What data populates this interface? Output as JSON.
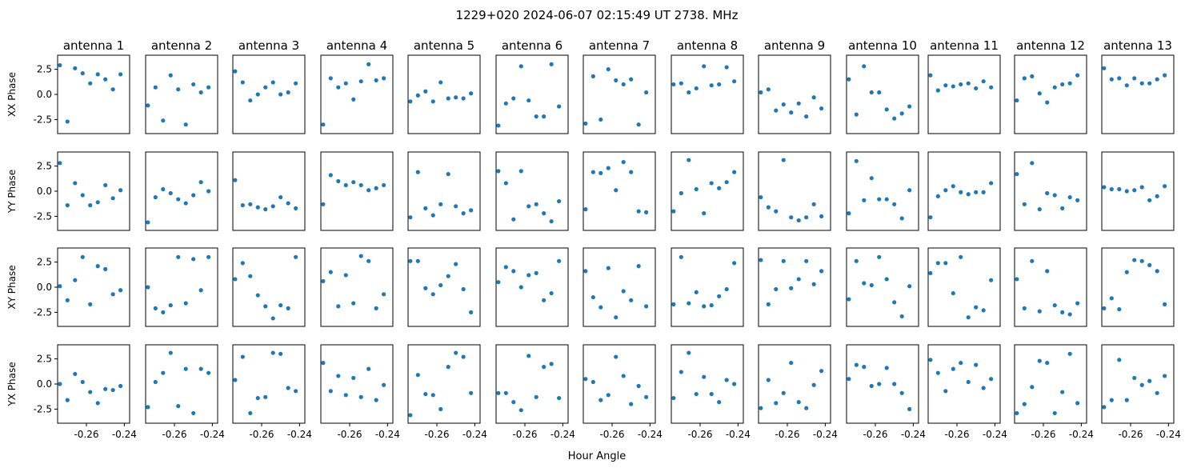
{
  "title": "1229+020  2024-06-07 02:15:49 UT  2738. MHz",
  "xlabel": "Hour Angle",
  "row_labels": [
    "XX Phase",
    "YY Phase",
    "XY Phase",
    "YX Phase"
  ],
  "antenna_labels": [
    "antenna 1",
    "antenna 2",
    "antenna 3",
    "antenna 4",
    "antenna 5",
    "antenna 6",
    "antenna 7",
    "antenna 8",
    "antenna 9",
    "antenna 10",
    "antenna 11",
    "antenna 12",
    "antenna 13"
  ],
  "y_ticks": [
    "2.5",
    "0.0",
    "-2.5"
  ],
  "x_ticks": [
    "-0.26",
    "-0.24"
  ],
  "colors": {
    "marker": "#1f77b4"
  },
  "chart_data": {
    "type": "scatter",
    "grid": false,
    "xlim": [
      -0.2752,
      -0.2372
    ],
    "ylim": [
      -3.9,
      3.9
    ],
    "x": [
      -0.274,
      -0.27,
      -0.266,
      -0.262,
      -0.258,
      -0.254,
      -0.25,
      -0.246,
      -0.242,
      -0.238
    ],
    "series": [
      {
        "row": 0,
        "antenna": 1,
        "values": [
          2.9,
          -2.7,
          2.6,
          2.1,
          1.1,
          2.0,
          1.5,
          0.5,
          2.0,
          null
        ]
      },
      {
        "row": 0,
        "antenna": 2,
        "values": [
          -1.1,
          0.7,
          -2.6,
          1.9,
          0.5,
          -3.0,
          1.0,
          0.2,
          0.7,
          null
        ]
      },
      {
        "row": 0,
        "antenna": 3,
        "values": [
          2.3,
          1.2,
          -0.6,
          0.0,
          0.7,
          1.2,
          0.0,
          0.2,
          1.1,
          null
        ]
      },
      {
        "row": 0,
        "antenna": 4,
        "values": [
          -3.0,
          1.6,
          0.7,
          1.1,
          -0.5,
          1.3,
          3.0,
          1.4,
          1.6,
          null
        ]
      },
      {
        "row": 0,
        "antenna": 5,
        "values": [
          -0.7,
          -0.1,
          0.3,
          -0.7,
          1.2,
          -0.4,
          -0.3,
          -0.4,
          0.1,
          null
        ]
      },
      {
        "row": 0,
        "antenna": 6,
        "values": [
          -3.1,
          -0.9,
          -0.4,
          2.8,
          -0.6,
          -2.2,
          -2.2,
          3.0,
          -1.2,
          null
        ]
      },
      {
        "row": 0,
        "antenna": 7,
        "values": [
          -2.9,
          1.8,
          -2.5,
          2.5,
          1.4,
          1.0,
          1.5,
          -3.0,
          0.2,
          null
        ]
      },
      {
        "row": 0,
        "antenna": 8,
        "values": [
          1.0,
          1.1,
          0.2,
          0.6,
          2.8,
          0.9,
          1.0,
          2.7,
          1.3,
          null
        ]
      },
      {
        "row": 0,
        "antenna": 9,
        "values": [
          0.2,
          0.5,
          -1.6,
          -1.0,
          -1.8,
          -0.9,
          -2.2,
          -0.3,
          -1.4,
          null
        ]
      },
      {
        "row": 0,
        "antenna": 10,
        "values": [
          1.5,
          -2.0,
          2.8,
          0.2,
          0.2,
          -1.5,
          -2.4,
          -1.9,
          -1.2,
          null
        ]
      },
      {
        "row": 0,
        "antenna": 11,
        "values": [
          1.9,
          0.4,
          0.9,
          0.8,
          1.0,
          1.1,
          0.6,
          1.3,
          0.7,
          null
        ]
      },
      {
        "row": 0,
        "antenna": 12,
        "values": [
          -0.6,
          1.6,
          1.8,
          0.1,
          -0.8,
          0.7,
          1.0,
          1.1,
          1.9,
          null
        ]
      },
      {
        "row": 0,
        "antenna": 13,
        "values": [
          2.6,
          1.5,
          1.6,
          0.9,
          1.6,
          1.1,
          1.1,
          1.5,
          1.9,
          null
        ]
      },
      {
        "row": 1,
        "antenna": 1,
        "values": [
          2.8,
          -1.4,
          0.8,
          -0.4,
          -1.4,
          -1.1,
          0.6,
          -0.7,
          0.1,
          null
        ]
      },
      {
        "row": 1,
        "antenna": 2,
        "values": [
          -3.1,
          -0.6,
          0.2,
          -0.2,
          -0.8,
          -1.2,
          -0.4,
          0.9,
          0.0,
          null
        ]
      },
      {
        "row": 1,
        "antenna": 3,
        "values": [
          1.1,
          -1.4,
          -1.3,
          -1.6,
          -1.8,
          -1.5,
          -0.6,
          -1.2,
          -1.7,
          null
        ]
      },
      {
        "row": 1,
        "antenna": 4,
        "values": [
          -1.3,
          1.6,
          1.0,
          0.6,
          0.9,
          0.6,
          0.1,
          0.3,
          0.6,
          null
        ]
      },
      {
        "row": 1,
        "antenna": 5,
        "values": [
          -2.6,
          1.9,
          -1.7,
          -2.4,
          -1.3,
          1.7,
          -1.5,
          -2.2,
          -1.9,
          null
        ]
      },
      {
        "row": 1,
        "antenna": 6,
        "values": [
          2.0,
          0.8,
          -2.8,
          2.0,
          -1.5,
          -1.3,
          -2.2,
          -3.0,
          -1.0,
          null
        ]
      },
      {
        "row": 1,
        "antenna": 7,
        "values": [
          -1.8,
          1.9,
          1.8,
          2.3,
          0.1,
          2.9,
          1.9,
          -2.0,
          -2.1,
          null
        ]
      },
      {
        "row": 1,
        "antenna": 8,
        "values": [
          -2.0,
          -0.2,
          3.1,
          0.2,
          -2.2,
          0.8,
          0.3,
          0.9,
          1.9,
          null
        ]
      },
      {
        "row": 1,
        "antenna": 9,
        "values": [
          -0.6,
          -1.6,
          -2.0,
          3.1,
          -2.6,
          -2.9,
          -2.6,
          -1.3,
          -2.5,
          null
        ]
      },
      {
        "row": 1,
        "antenna": 10,
        "values": [
          -2.2,
          3.0,
          -0.9,
          1.3,
          -0.8,
          -0.8,
          -1.3,
          -2.7,
          0.1,
          null
        ]
      },
      {
        "row": 1,
        "antenna": 11,
        "values": [
          -2.6,
          -0.5,
          0.1,
          0.5,
          -0.1,
          -0.3,
          -0.1,
          -0.1,
          0.8,
          null
        ]
      },
      {
        "row": 1,
        "antenna": 12,
        "values": [
          1.7,
          -1.3,
          2.8,
          -1.8,
          -0.2,
          -0.4,
          -1.7,
          -0.6,
          -0.9,
          null
        ]
      },
      {
        "row": 1,
        "antenna": 13,
        "values": [
          0.4,
          0.2,
          0.2,
          0.0,
          0.1,
          0.4,
          -0.9,
          -0.5,
          0.5,
          null
        ]
      },
      {
        "row": 2,
        "antenna": 1,
        "values": [
          0.1,
          -1.3,
          0.7,
          3.0,
          -1.7,
          2.1,
          1.8,
          -0.7,
          -0.3,
          null
        ]
      },
      {
        "row": 2,
        "antenna": 2,
        "values": [
          0.0,
          -2.1,
          -2.5,
          -1.8,
          3.0,
          -1.6,
          2.8,
          -0.3,
          3.0,
          null
        ]
      },
      {
        "row": 2,
        "antenna": 3,
        "values": [
          0.8,
          2.4,
          1.1,
          -0.8,
          -1.9,
          -3.1,
          -1.8,
          -2.1,
          3.0,
          null
        ]
      },
      {
        "row": 2,
        "antenna": 4,
        "values": [
          0.6,
          1.5,
          -1.9,
          1.2,
          -1.6,
          3.1,
          2.6,
          -2.1,
          -0.7,
          null
        ]
      },
      {
        "row": 2,
        "antenna": 5,
        "values": [
          2.6,
          2.6,
          -0.1,
          -0.7,
          0.2,
          1.1,
          2.3,
          -0.2,
          -2.5,
          null
        ]
      },
      {
        "row": 2,
        "antenna": 6,
        "values": [
          0.5,
          2.0,
          1.6,
          0.0,
          1.2,
          1.4,
          -1.3,
          -0.6,
          2.6,
          null
        ]
      },
      {
        "row": 2,
        "antenna": 7,
        "values": [
          1.6,
          -1.0,
          -2.0,
          1.9,
          -3.0,
          -0.4,
          -1.3,
          2.1,
          -1.9,
          null
        ]
      },
      {
        "row": 2,
        "antenna": 8,
        "values": [
          -1.7,
          3.0,
          -1.6,
          -0.5,
          -1.9,
          -1.8,
          -0.9,
          -0.2,
          2.4,
          null
        ]
      },
      {
        "row": 2,
        "antenna": 9,
        "values": [
          2.7,
          -1.7,
          -0.2,
          2.6,
          -0.1,
          0.8,
          2.6,
          0.3,
          1.6,
          null
        ]
      },
      {
        "row": 2,
        "antenna": 10,
        "values": [
          -1.2,
          2.6,
          0.4,
          0.2,
          3.0,
          0.8,
          -1.5,
          -2.9,
          0.1,
          null
        ]
      },
      {
        "row": 2,
        "antenna": 11,
        "values": [
          1.4,
          2.4,
          2.4,
          -0.6,
          3.0,
          -3.0,
          -2.0,
          -2.3,
          0.7,
          null
        ]
      },
      {
        "row": 2,
        "antenna": 12,
        "values": [
          0.8,
          -2.1,
          2.6,
          -2.4,
          1.6,
          -1.8,
          -2.5,
          -2.7,
          -1.6,
          null
        ]
      },
      {
        "row": 2,
        "antenna": 13,
        "values": [
          -2.1,
          -1.1,
          -2.2,
          1.5,
          2.7,
          2.6,
          2.2,
          1.6,
          -1.7,
          null
        ]
      },
      {
        "row": 3,
        "antenna": 1,
        "values": [
          0.0,
          -1.6,
          1.0,
          0.2,
          -0.8,
          -1.9,
          -0.5,
          -0.6,
          -0.2,
          null
        ]
      },
      {
        "row": 3,
        "antenna": 2,
        "values": [
          -2.3,
          0.2,
          1.1,
          3.1,
          -2.2,
          1.5,
          -2.9,
          1.5,
          1.1,
          null
        ]
      },
      {
        "row": 3,
        "antenna": 3,
        "values": [
          0.4,
          2.7,
          -2.9,
          -1.4,
          -1.3,
          3.1,
          3.0,
          -0.4,
          -0.7,
          null
        ]
      },
      {
        "row": 3,
        "antenna": 4,
        "values": [
          2.1,
          -0.7,
          0.8,
          -1.1,
          0.6,
          -1.3,
          1.5,
          -1.6,
          -0.1,
          null
        ]
      },
      {
        "row": 3,
        "antenna": 5,
        "values": [
          -3.1,
          0.9,
          -1.0,
          -1.1,
          -2.5,
          1.7,
          3.1,
          2.7,
          -0.9,
          null
        ]
      },
      {
        "row": 3,
        "antenna": 6,
        "values": [
          -0.9,
          -0.9,
          -1.8,
          -2.6,
          2.8,
          -1.3,
          1.7,
          2.0,
          -1.4,
          null
        ]
      },
      {
        "row": 3,
        "antenna": 7,
        "values": [
          0.5,
          0.2,
          -1.6,
          -1.1,
          2.7,
          0.8,
          -2.0,
          -0.2,
          -1.3,
          null
        ]
      },
      {
        "row": 3,
        "antenna": 8,
        "values": [
          -1.4,
          1.2,
          3.1,
          -1.0,
          0.7,
          -1.0,
          -1.8,
          0.4,
          0.0,
          null
        ]
      },
      {
        "row": 3,
        "antenna": 9,
        "values": [
          -2.4,
          0.4,
          -1.9,
          -0.9,
          2.1,
          -1.8,
          -2.4,
          -0.1,
          1.3,
          null
        ]
      },
      {
        "row": 3,
        "antenna": 10,
        "values": [
          0.5,
          1.9,
          1.7,
          -0.2,
          0.0,
          1.6,
          0.0,
          -0.9,
          -2.5,
          null
        ]
      },
      {
        "row": 3,
        "antenna": 11,
        "values": [
          2.4,
          1.1,
          -0.7,
          1.5,
          2.1,
          0.2,
          1.9,
          -0.4,
          0.5,
          null
        ]
      },
      {
        "row": 3,
        "antenna": 12,
        "values": [
          -2.9,
          -2.0,
          -0.3,
          2.3,
          2.1,
          -2.9,
          -0.8,
          3.0,
          -1.9,
          null
        ]
      },
      {
        "row": 3,
        "antenna": 13,
        "values": [
          -2.3,
          -1.6,
          2.4,
          -1.6,
          0.6,
          -0.1,
          0.3,
          -0.9,
          0.8,
          null
        ]
      }
    ]
  }
}
